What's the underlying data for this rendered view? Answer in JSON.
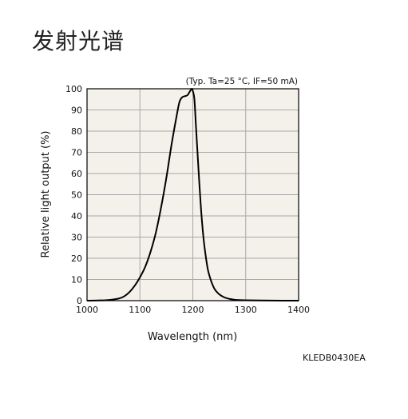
{
  "page": {
    "title": "发射光谱",
    "figure_code": "KLEDB0430EA"
  },
  "chart_data": {
    "type": "line",
    "title": "",
    "annotation": "(Typ. Ta=25 °C, IF=50 mA)",
    "xlabel": "Wavelength (nm)",
    "ylabel": "Relative light output (%)",
    "xlim": [
      1000,
      1400
    ],
    "ylim": [
      0,
      100
    ],
    "x_ticks": [
      1000,
      1100,
      1200,
      1300,
      1400
    ],
    "y_ticks": [
      0,
      10,
      20,
      30,
      40,
      50,
      60,
      70,
      80,
      90,
      100
    ],
    "grid": true,
    "legend": "none",
    "colors": {
      "plot_bg": "#f3f1e9",
      "line": "#000000",
      "grid": "#a8a8a8"
    },
    "series": [
      {
        "x": [
          1000,
          1020,
          1040,
          1060,
          1070,
          1080,
          1090,
          1100,
          1110,
          1120,
          1130,
          1140,
          1150,
          1160,
          1170,
          1175,
          1180,
          1185,
          1190,
          1195,
          1198,
          1200,
          1203,
          1206,
          1210,
          1215,
          1220,
          1225,
          1230,
          1240,
          1250,
          1260,
          1270,
          1280,
          1300,
          1330,
          1370,
          1400
        ],
        "y": [
          0,
          0.1,
          0.3,
          1,
          2,
          4,
          7,
          11,
          16,
          23,
          32,
          44,
          58,
          74,
          88,
          94,
          96,
          96.5,
          97,
          99,
          100,
          99,
          95,
          82,
          65,
          45,
          30,
          20,
          13,
          6,
          3,
          1.5,
          0.8,
          0.4,
          0.2,
          0.1,
          0,
          0
        ]
      }
    ]
  }
}
